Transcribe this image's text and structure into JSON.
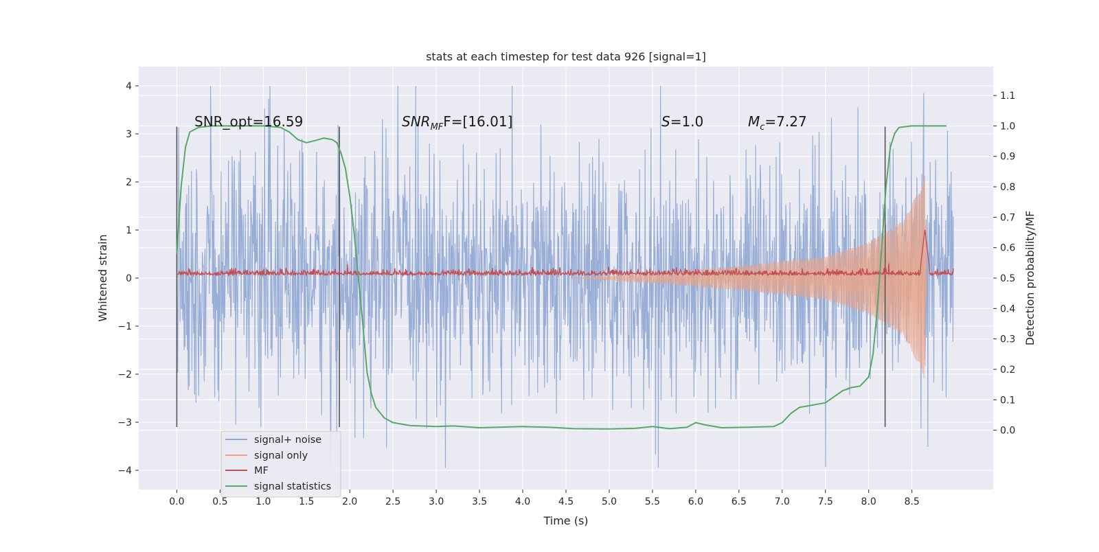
{
  "chart_data": {
    "type": "line",
    "title": "stats at each timestep for test data 926 [signal=1]",
    "xlabel": "Time (s)",
    "ylabel_left": "Whitened strain",
    "ylabel_right": "Detection probability/MF",
    "xlim": [
      -0.44,
      9.44
    ],
    "ylim_left": [
      -4.4,
      4.4
    ],
    "ylim_right": [
      -0.195,
      1.195
    ],
    "xticks": [
      "0.0",
      "0.5",
      "1.0",
      "1.5",
      "2.0",
      "2.5",
      "3.0",
      "3.5",
      "4.0",
      "4.5",
      "5.0",
      "5.5",
      "6.0",
      "6.5",
      "7.0",
      "7.5",
      "8.0",
      "8.5"
    ],
    "yticks_left": [
      "4",
      "3",
      "2",
      "1",
      "0",
      "−1",
      "−2",
      "−3",
      "−4"
    ],
    "yticks_right": [
      "1.1",
      "1.0",
      "0.9",
      "0.8",
      "0.7",
      "0.6",
      "0.5",
      "0.4",
      "0.3",
      "0.2",
      "0.1",
      "0.0"
    ],
    "grid": true,
    "legend_position": "lower-left",
    "annotations": [
      {
        "id": "snr-opt",
        "text": "SNR_opt=16.59",
        "x": 0.2,
        "y": 3.15
      },
      {
        "id": "snr-mf",
        "prefix": "SNR",
        "sub": "MF",
        "suffix": "F=[16.01]",
        "x": 2.6,
        "y": 3.15
      },
      {
        "id": "s-value",
        "prefix": "S",
        "suffix": "=1.0",
        "x": 5.6,
        "y": 3.15
      },
      {
        "id": "mc-value",
        "prefix": "M",
        "sub": "c",
        "suffix": "=7.27",
        "x": 6.6,
        "y": 3.15
      }
    ],
    "vlines": [
      0.0,
      1.88,
      8.19
    ],
    "vline_range": [
      -3.1,
      3.15
    ],
    "series": [
      {
        "name": "signal+ noise",
        "axis": "left",
        "color": "#8fa7d4",
        "style": "noise",
        "x_range": [
          0.0,
          8.98
        ],
        "envelope": 1.3,
        "max_peak": 4.0,
        "min_peak": -3.95
      },
      {
        "name": "signal only",
        "axis": "left",
        "color": "#e8a58a",
        "style": "chirp",
        "x_range": [
          4.6,
          8.67
        ],
        "amplitude_points": [
          [
            4.6,
            0.0
          ],
          [
            5.5,
            0.1
          ],
          [
            6.5,
            0.25
          ],
          [
            7.5,
            0.45
          ],
          [
            8.0,
            0.75
          ],
          [
            8.4,
            1.2
          ],
          [
            8.6,
            1.9
          ],
          [
            8.65,
            2.2
          ],
          [
            8.67,
            0.0
          ]
        ]
      },
      {
        "name": "MF",
        "axis": "right",
        "color": "#c44e52",
        "style": "mf",
        "x_range": [
          0.0,
          8.98
        ],
        "baseline": 0.51,
        "peak": {
          "x": 8.65,
          "y": 0.66
        }
      },
      {
        "name": "signal statistics",
        "axis": "right",
        "color": "#55a868",
        "style": "line",
        "points": [
          [
            0.0,
            0.58
          ],
          [
            0.05,
            0.8
          ],
          [
            0.1,
            0.93
          ],
          [
            0.15,
            0.98
          ],
          [
            0.25,
            0.995
          ],
          [
            0.4,
            1.0
          ],
          [
            1.0,
            1.0
          ],
          [
            1.2,
            0.995
          ],
          [
            1.3,
            0.98
          ],
          [
            1.4,
            0.955
          ],
          [
            1.5,
            0.945
          ],
          [
            1.6,
            0.952
          ],
          [
            1.7,
            0.96
          ],
          [
            1.8,
            0.955
          ],
          [
            1.85,
            0.945
          ],
          [
            1.9,
            0.91
          ],
          [
            1.95,
            0.86
          ],
          [
            2.0,
            0.77
          ],
          [
            2.05,
            0.65
          ],
          [
            2.1,
            0.5
          ],
          [
            2.15,
            0.35
          ],
          [
            2.2,
            0.19
          ],
          [
            2.25,
            0.12
          ],
          [
            2.3,
            0.075
          ],
          [
            2.4,
            0.04
          ],
          [
            2.5,
            0.025
          ],
          [
            2.7,
            0.015
          ],
          [
            3.0,
            0.012
          ],
          [
            3.2,
            0.014
          ],
          [
            3.5,
            0.008
          ],
          [
            4.0,
            0.012
          ],
          [
            4.3,
            0.01
          ],
          [
            4.6,
            0.005
          ],
          [
            5.0,
            0.004
          ],
          [
            5.3,
            0.006
          ],
          [
            5.5,
            0.012
          ],
          [
            5.7,
            0.005
          ],
          [
            5.9,
            0.01
          ],
          [
            6.0,
            0.025
          ],
          [
            6.1,
            0.018
          ],
          [
            6.3,
            0.008
          ],
          [
            6.6,
            0.01
          ],
          [
            6.9,
            0.012
          ],
          [
            7.0,
            0.025
          ],
          [
            7.1,
            0.055
          ],
          [
            7.2,
            0.075
          ],
          [
            7.3,
            0.08
          ],
          [
            7.5,
            0.09
          ],
          [
            7.6,
            0.11
          ],
          [
            7.7,
            0.13
          ],
          [
            7.8,
            0.14
          ],
          [
            7.9,
            0.145
          ],
          [
            8.0,
            0.175
          ],
          [
            8.05,
            0.25
          ],
          [
            8.1,
            0.4
          ],
          [
            8.15,
            0.6
          ],
          [
            8.2,
            0.8
          ],
          [
            8.25,
            0.93
          ],
          [
            8.3,
            0.975
          ],
          [
            8.35,
            0.995
          ],
          [
            8.5,
            1.0
          ],
          [
            8.9,
            1.0
          ]
        ]
      }
    ]
  },
  "legend": [
    {
      "label": "signal+ noise",
      "color": "#8fa7d4"
    },
    {
      "label": "signal only",
      "color": "#e8a58a"
    },
    {
      "label": "MF",
      "color": "#c44e52"
    },
    {
      "label": "signal statistics",
      "color": "#55a868"
    }
  ]
}
